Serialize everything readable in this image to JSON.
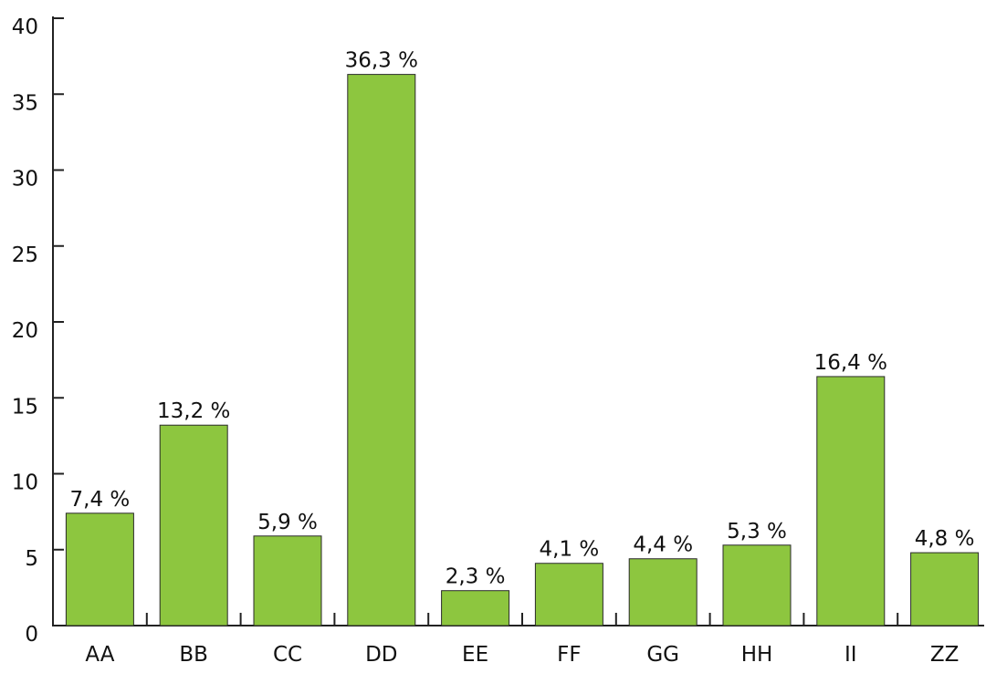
{
  "chart_data": {
    "type": "bar",
    "categories": [
      "AA",
      "BB",
      "CC",
      "DD",
      "EE",
      "FF",
      "GG",
      "HH",
      "II",
      "ZZ"
    ],
    "values": [
      7.4,
      13.2,
      5.9,
      36.3,
      2.3,
      4.1,
      4.4,
      5.3,
      16.4,
      4.8
    ],
    "value_labels": [
      "7,4 %",
      "13,2 %",
      "5,9 %",
      "36,3 %",
      "2,3 %",
      "4,1 %",
      "4,4 %",
      "5,3 %",
      "16,4 %",
      "4,8 %"
    ],
    "color": "#8dc63f",
    "ylim": [
      0,
      40
    ],
    "yticks": [
      0,
      5,
      10,
      15,
      20,
      25,
      30,
      35,
      40
    ],
    "grid": false
  }
}
